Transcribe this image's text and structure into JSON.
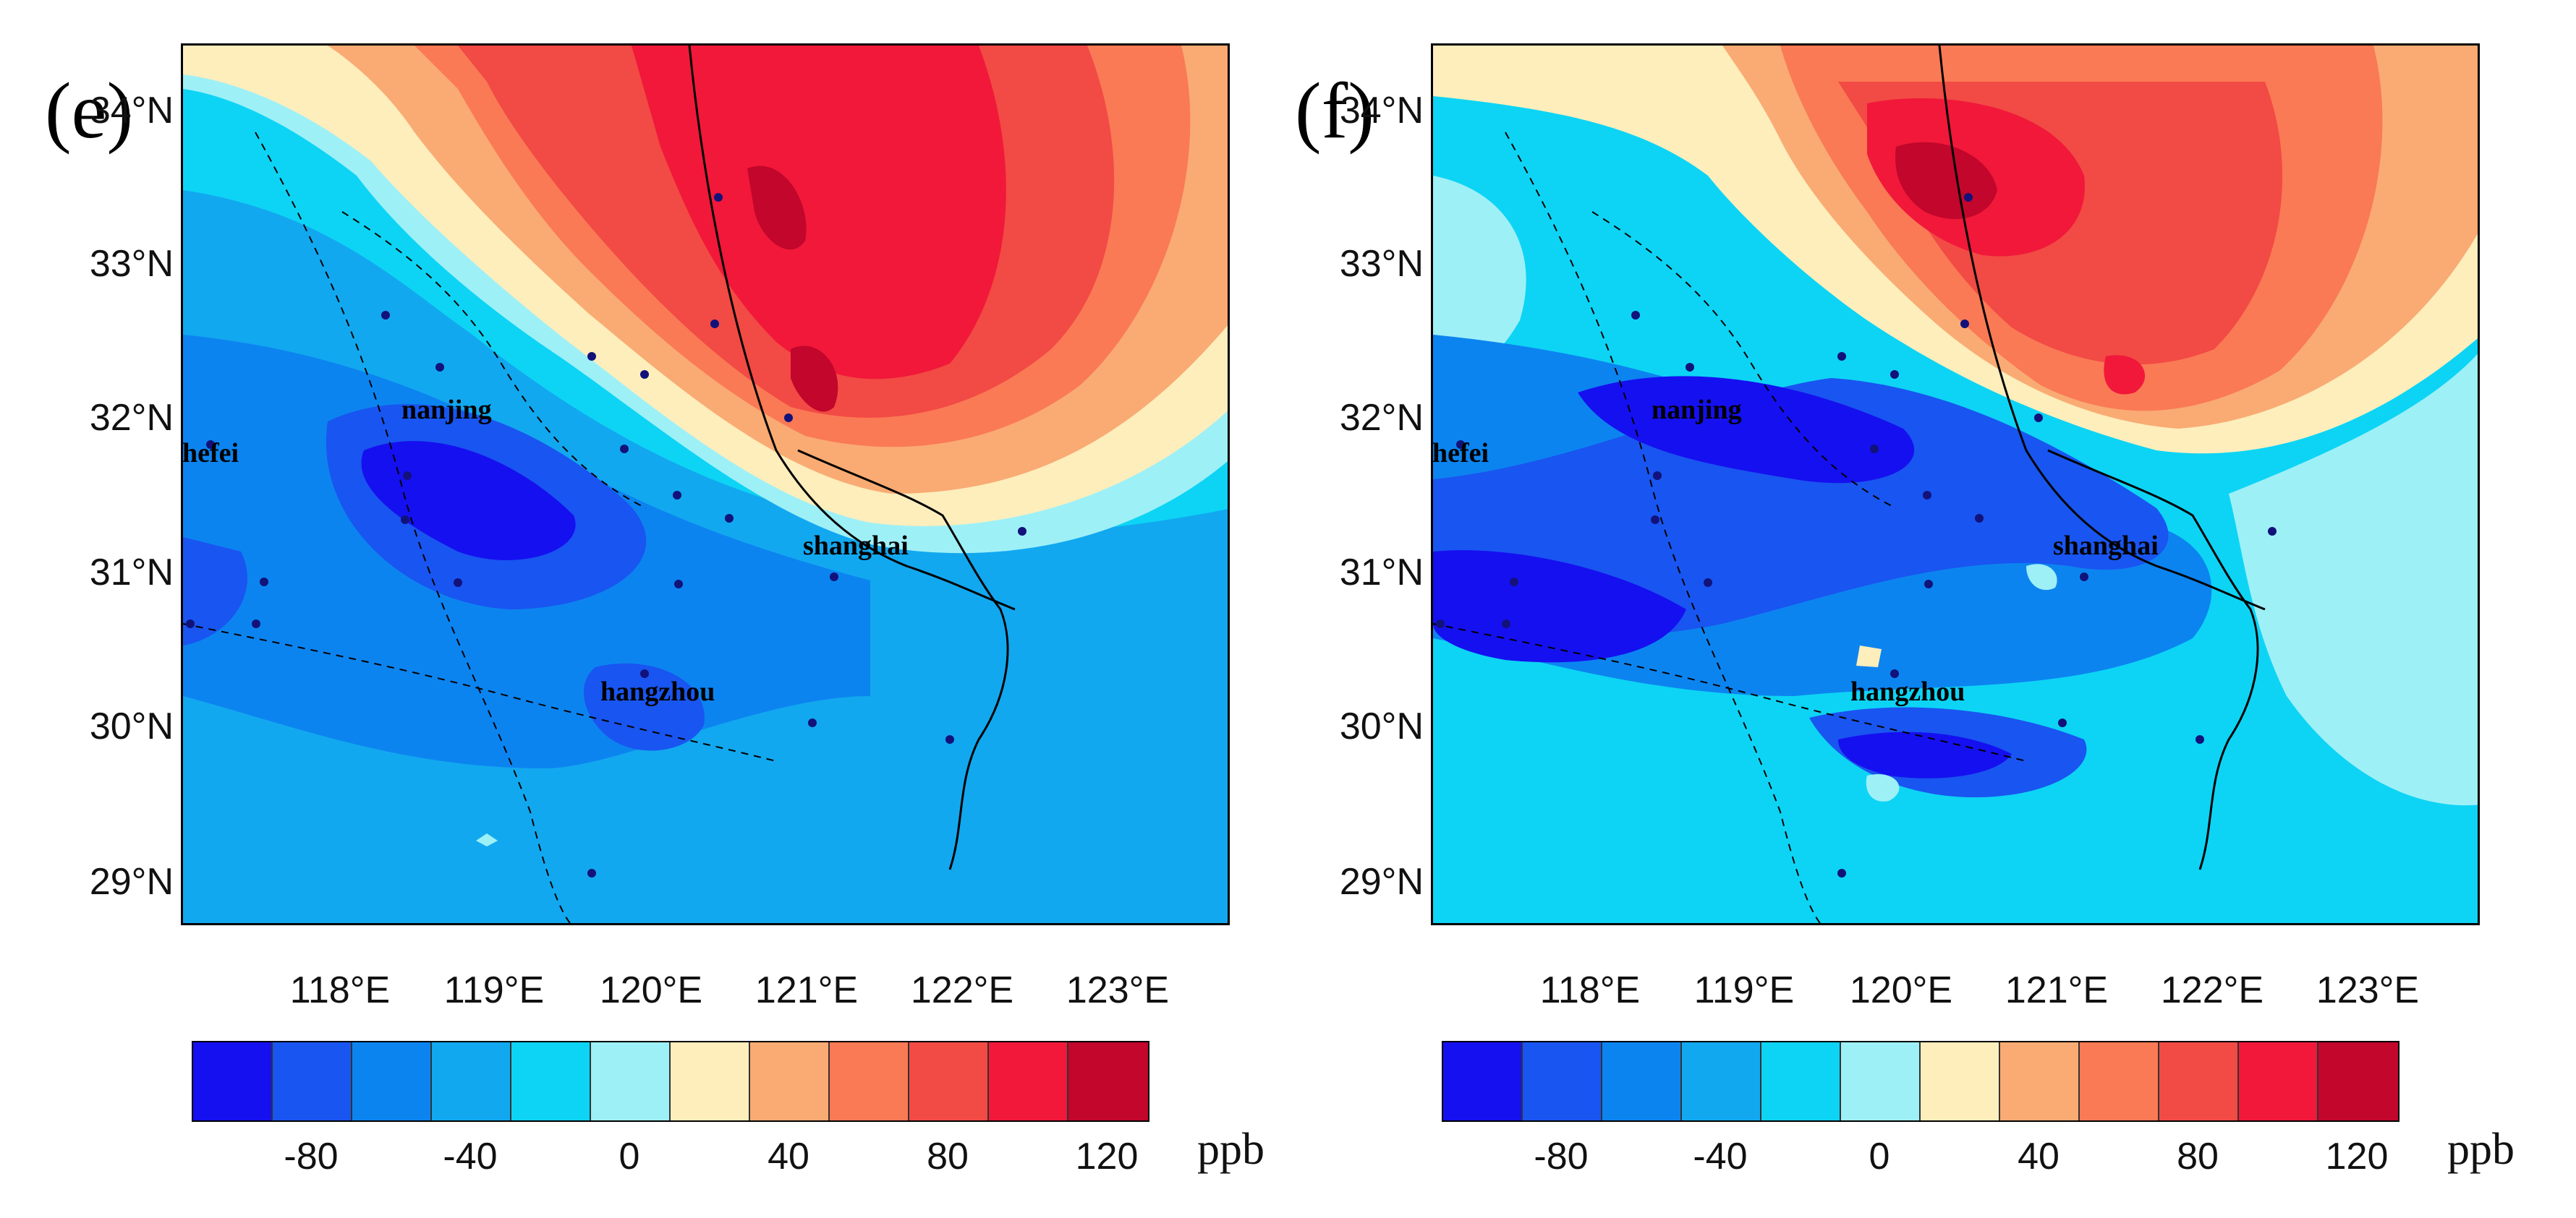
{
  "colors": {
    "scale": [
      "#1510f0",
      "#1955f0",
      "#0c84f0",
      "#12a8ef",
      "#0dd4f5",
      "#9ef0f7",
      "#fdeebc",
      "#f9ab73",
      "#fa7a55",
      "#f24a44",
      "#f1183a",
      "#c2062c"
    ],
    "frame": "#000000",
    "station": "#12127a"
  },
  "colorbar": {
    "tick_labels": [
      "-80",
      "-40",
      "0",
      "40",
      "80",
      "120"
    ],
    "tick_boundaries": [
      2,
      4,
      6,
      8,
      10,
      12
    ],
    "unit": "ppb"
  },
  "axes": {
    "lat_labels": [
      "34°N",
      "33°N",
      "32°N",
      "31°N",
      "30°N",
      "29°N"
    ],
    "lon_labels": [
      "118°E",
      "119°E",
      "120°E",
      "121°E",
      "122°E",
      "123°E"
    ]
  },
  "cities": {
    "nanjing": "nanjing",
    "hefei": "hefei",
    "shanghai": "shanghai",
    "hangzhou": "hangzhou"
  },
  "panels": [
    {
      "id": "e",
      "label": "(e)"
    },
    {
      "id": "f",
      "label": "(f)"
    }
  ]
}
